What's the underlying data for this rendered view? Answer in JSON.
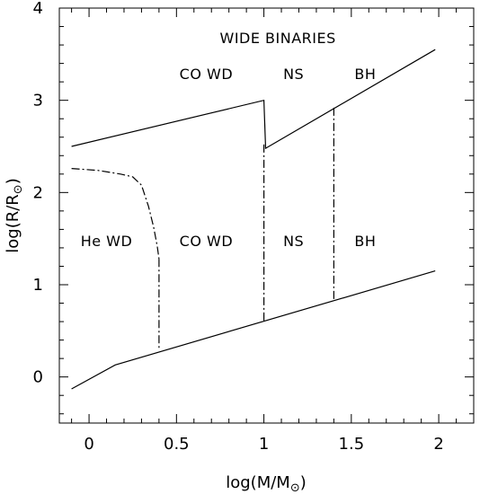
{
  "chart_data": {
    "type": "line",
    "title": "",
    "xlabel": "log(M/M",
    "xlabel_sub": "⊙",
    "xlabel_close": ")",
    "ylabel": "log(R/R",
    "ylabel_sub": "⊙",
    "ylabel_close": ")",
    "xlim": [
      -0.17,
      2.2
    ],
    "ylim": [
      -0.5,
      4
    ],
    "xticks": [
      {
        "value": 0,
        "label": "0"
      },
      {
        "value": 0.5,
        "label": "0.5"
      },
      {
        "value": 1,
        "label": "1"
      },
      {
        "value": 1.5,
        "label": "1.5"
      },
      {
        "value": 2,
        "label": "2"
      }
    ],
    "yticks": [
      {
        "value": 0,
        "label": "0"
      },
      {
        "value": 1,
        "label": "1"
      },
      {
        "value": 2,
        "label": "2"
      },
      {
        "value": 3,
        "label": "3"
      },
      {
        "value": 4,
        "label": "4"
      }
    ],
    "grid": false,
    "series": [
      {
        "style": "solid",
        "points": [
          [
            -0.1,
            2.5
          ],
          [
            1.0,
            3.0
          ],
          [
            1.01,
            2.48
          ],
          [
            1.98,
            3.55
          ]
        ]
      },
      {
        "style": "solid",
        "points": [
          [
            -0.1,
            -0.13
          ],
          [
            0.15,
            0.13
          ],
          [
            1.98,
            1.15
          ]
        ]
      },
      {
        "style": "dash-dot",
        "points": [
          [
            -0.1,
            2.26
          ],
          [
            0.05,
            2.24
          ],
          [
            0.18,
            2.2
          ],
          [
            0.25,
            2.17
          ],
          [
            0.3,
            2.08
          ],
          [
            0.34,
            1.85
          ],
          [
            0.37,
            1.62
          ],
          [
            0.39,
            1.42
          ],
          [
            0.4,
            1.28
          ]
        ]
      },
      {
        "style": "dash-dot",
        "points": [
          [
            0.4,
            1.28
          ],
          [
            0.4,
            0.3
          ]
        ]
      },
      {
        "style": "dash-dot",
        "points": [
          [
            1.0,
            2.52
          ],
          [
            1.0,
            0.6
          ]
        ]
      },
      {
        "style": "dash-dot",
        "points": [
          [
            1.4,
            2.92
          ],
          [
            1.4,
            0.83
          ]
        ]
      }
    ],
    "annotations": [
      {
        "text": "WIDE BINARIES",
        "x": 1.08,
        "y": 3.62
      },
      {
        "text": "CO WD",
        "x": 0.67,
        "y": 3.23
      },
      {
        "text": "NS",
        "x": 1.17,
        "y": 3.23
      },
      {
        "text": "BH",
        "x": 1.58,
        "y": 3.23
      },
      {
        "text": "He WD",
        "x": 0.1,
        "y": 1.42
      },
      {
        "text": "CO WD",
        "x": 0.67,
        "y": 1.42
      },
      {
        "text": "NS",
        "x": 1.17,
        "y": 1.42
      },
      {
        "text": "BH",
        "x": 1.58,
        "y": 1.42
      }
    ]
  }
}
